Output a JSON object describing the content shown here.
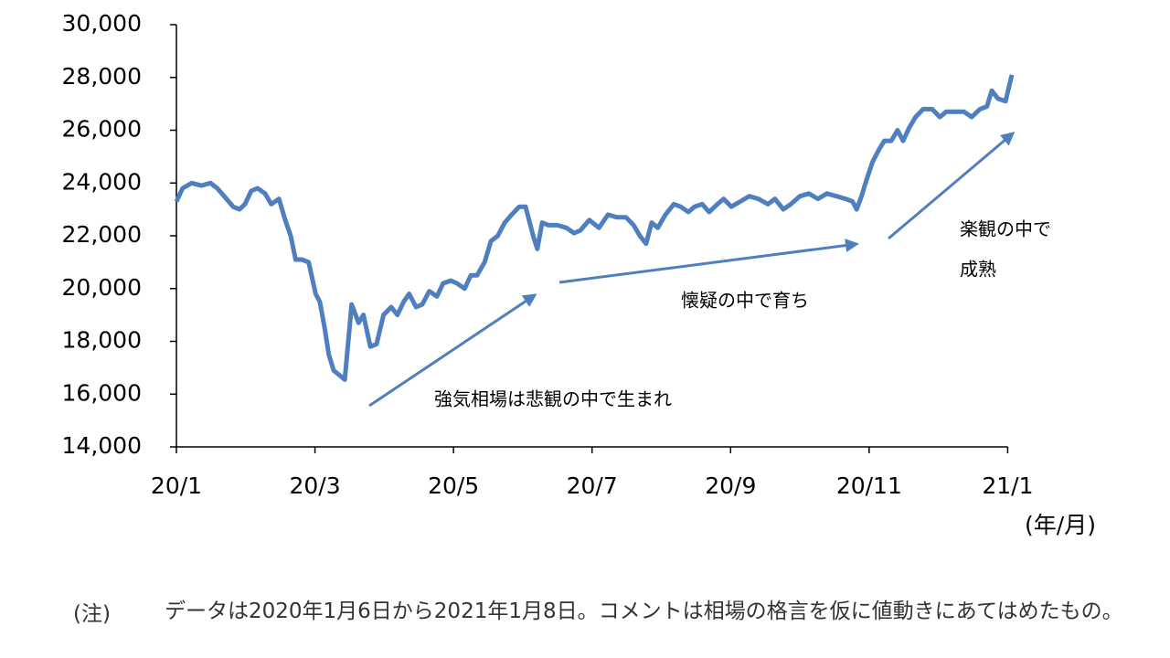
{
  "chart_data": {
    "type": "line",
    "x_label": "(年/月)",
    "annotations": [
      "強気相場は悲観の中で生まれ",
      "懐疑の中で育ち",
      "楽観の中で",
      "成熟"
    ],
    "note_label": "(注)",
    "note": "データは2020年1月6日から2021年1月8日。コメントは相場の格言を仮に値動きにあてはめたもの。",
    "xlim": [
      0,
      12.1
    ],
    "xticks": [
      {
        "value": 0,
        "label": "20/1"
      },
      {
        "value": 2,
        "label": "20/3"
      },
      {
        "value": 4,
        "label": "20/5"
      },
      {
        "value": 6,
        "label": "20/7"
      },
      {
        "value": 8,
        "label": "20/9"
      },
      {
        "value": 10,
        "label": "20/11"
      },
      {
        "value": 12,
        "label": "21/1"
      }
    ],
    "ylim": [
      14000,
      30000
    ],
    "yticks": [
      {
        "value": 14000,
        "label": "14,000"
      },
      {
        "value": 16000,
        "label": "16,000"
      },
      {
        "value": 18000,
        "label": "18,000"
      },
      {
        "value": 20000,
        "label": "20,000"
      },
      {
        "value": 22000,
        "label": "22,000"
      },
      {
        "value": 24000,
        "label": "24,000"
      },
      {
        "value": 26000,
        "label": "26,000"
      },
      {
        "value": 28000,
        "label": "28,000"
      },
      {
        "value": 30000,
        "label": "30,000"
      }
    ],
    "series": [
      {
        "color": "#4f7fbf",
        "x": [
          0,
          0.09,
          0.22,
          0.36,
          0.49,
          0.59,
          0.69,
          0.82,
          0.91,
          0.99,
          1.08,
          1.17,
          1.28,
          1.37,
          1.48,
          1.57,
          1.65,
          1.72,
          1.81,
          1.91,
          2.01,
          2.07,
          2.14,
          2.2,
          2.27,
          2.36,
          2.43,
          2.53,
          2.63,
          2.7,
          2.8,
          2.89,
          2.99,
          3.1,
          3.19,
          3.28,
          3.36,
          3.46,
          3.55,
          3.65,
          3.76,
          3.85,
          3.96,
          4.05,
          4.16,
          4.25,
          4.34,
          4.45,
          4.54,
          4.64,
          4.74,
          4.84,
          4.95,
          5.04,
          5.15,
          5.21,
          5.28,
          5.37,
          5.5,
          5.63,
          5.74,
          5.83,
          5.96,
          6.1,
          6.23,
          6.36,
          6.49,
          6.6,
          6.69,
          6.78,
          6.86,
          6.95,
          7.06,
          7.18,
          7.28,
          7.39,
          7.48,
          7.59,
          7.69,
          7.81,
          7.9,
          8.01,
          8.14,
          8.27,
          8.4,
          8.54,
          8.64,
          8.76,
          8.87,
          9,
          9.13,
          9.26,
          9.39,
          9.53,
          9.66,
          9.76,
          9.82,
          9.89,
          9.96,
          10.05,
          10.15,
          10.22,
          10.32,
          10.41,
          10.49,
          10.58,
          10.67,
          10.78,
          10.91,
          11.02,
          11.11,
          11.24,
          11.37,
          11.48,
          11.6,
          11.7,
          11.77,
          11.86,
          11.97,
          12.06
        ],
        "values": [
          23300,
          23800,
          24000,
          23900,
          24000,
          23800,
          23500,
          23100,
          23000,
          23200,
          23700,
          23800,
          23600,
          23200,
          23400,
          22600,
          22000,
          21100,
          21100,
          21000,
          19800,
          19500,
          18500,
          17500,
          16900,
          16700,
          16550,
          19400,
          18700,
          19000,
          17800,
          17900,
          19000,
          19300,
          19000,
          19500,
          19800,
          19300,
          19400,
          19900,
          19700,
          20200,
          20300,
          20200,
          20000,
          20500,
          20500,
          21000,
          21800,
          22000,
          22500,
          22800,
          23100,
          23100,
          22000,
          21500,
          22500,
          22400,
          22400,
          22300,
          22100,
          22200,
          22600,
          22300,
          22800,
          22700,
          22700,
          22400,
          22000,
          21700,
          22500,
          22300,
          22800,
          23200,
          23100,
          22900,
          23100,
          23200,
          22900,
          23200,
          23400,
          23100,
          23300,
          23500,
          23400,
          23200,
          23400,
          23000,
          23200,
          23500,
          23600,
          23400,
          23600,
          23500,
          23400,
          23300,
          23000,
          23500,
          24100,
          24800,
          25300,
          25600,
          25600,
          26000,
          25600,
          26100,
          26500,
          26800,
          26800,
          26500,
          26700,
          26700,
          26700,
          26500,
          26800,
          26900,
          27500,
          27200,
          27100,
          28100
        ]
      }
    ]
  }
}
